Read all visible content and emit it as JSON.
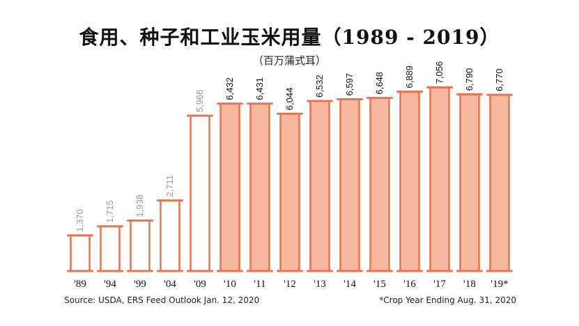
{
  "chart_data": {
    "type": "bar",
    "title": "食用、种子和工业玉米用量（1989 - 2019）",
    "subtitle": "（百万蒲式耳）",
    "categories": [
      "'89",
      "'94",
      "'99",
      "'04",
      "'09",
      "'10",
      "'11",
      "'12",
      "'13",
      "'14",
      "'15",
      "'16",
      "'17",
      "'18",
      "'19*"
    ],
    "values": [
      1370,
      1715,
      1938,
      2711,
      5966,
      6432,
      6431,
      6044,
      6532,
      6597,
      6648,
      6889,
      7056,
      6790,
      6770
    ],
    "value_labels": [
      "1,370",
      "1,715",
      "1,938",
      "2,711",
      "5,966",
      "6,432",
      "6,431",
      "6,044",
      "6,532",
      "6,597",
      "6,648",
      "6,889",
      "7,056",
      "6,790",
      "6,770"
    ],
    "highlight": [
      false,
      false,
      false,
      false,
      false,
      true,
      true,
      true,
      true,
      true,
      true,
      true,
      true,
      true,
      true
    ],
    "ylim": [
      0,
      7200
    ],
    "grid": false,
    "colors": {
      "outline": "#e8744f",
      "fill_highlight": "#f7b8a0",
      "fill_plain": "#ffffff",
      "label_highlight": "#111111",
      "label_plain": "#9a9a9a"
    }
  },
  "footer": {
    "source": "Source: USDA, ERS Feed Outlook Jan. 12, 2020",
    "note": "*Crop Year Ending Aug. 31, 2020"
  }
}
